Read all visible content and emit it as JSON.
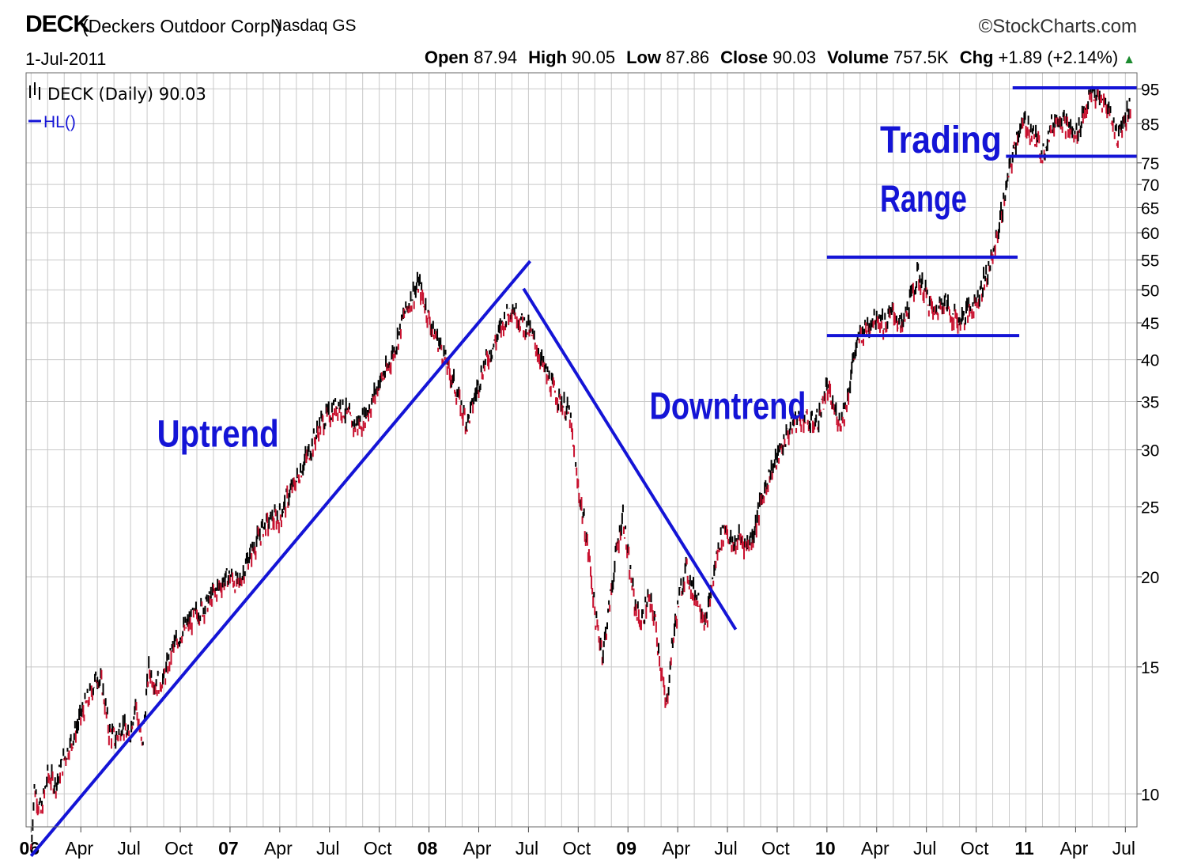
{
  "header": {
    "ticker": "DECK",
    "company": "(Deckers Outdoor Corp.)",
    "exchange": "Nasdaq GS",
    "date": "1-Jul-2011",
    "brand": "©StockCharts.com",
    "quote": {
      "open_label": "Open",
      "open": "87.94",
      "high_label": "High",
      "high": "90.05",
      "low_label": "Low",
      "low": "87.86",
      "close_label": "Close",
      "close": "90.03",
      "volume_label": "Volume",
      "volume": "757.5K",
      "chg_label": "Chg",
      "chg": "+1.89 (+2.14%)",
      "chg_icon": "up-triangle-icon"
    }
  },
  "chart_data": {
    "type": "line",
    "scale": "log",
    "grid": true,
    "legend": {
      "position": "top-left",
      "price_label": "DECK (Daily) 90.03",
      "indicator_label": "HL()"
    },
    "ylim": [
      9,
      100
    ],
    "y_ticks": [
      10,
      15,
      20,
      25,
      30,
      35,
      40,
      45,
      50,
      55,
      60,
      65,
      70,
      75,
      85,
      95
    ],
    "x_ticks": [
      {
        "label": "06",
        "t": 0,
        "bold": true
      },
      {
        "label": "Apr",
        "t": 3
      },
      {
        "label": "Jul",
        "t": 6
      },
      {
        "label": "Oct",
        "t": 9
      },
      {
        "label": "07",
        "t": 12,
        "bold": true
      },
      {
        "label": "Apr",
        "t": 15
      },
      {
        "label": "Jul",
        "t": 18
      },
      {
        "label": "Oct",
        "t": 21
      },
      {
        "label": "08",
        "t": 24,
        "bold": true
      },
      {
        "label": "Apr",
        "t": 27
      },
      {
        "label": "Jul",
        "t": 30
      },
      {
        "label": "Oct",
        "t": 33
      },
      {
        "label": "09",
        "t": 36,
        "bold": true
      },
      {
        "label": "Apr",
        "t": 39
      },
      {
        "label": "Jul",
        "t": 42
      },
      {
        "label": "Oct",
        "t": 45
      },
      {
        "label": "10",
        "t": 48,
        "bold": true
      },
      {
        "label": "Apr",
        "t": 51
      },
      {
        "label": "Jul",
        "t": 54
      },
      {
        "label": "Oct",
        "t": 57
      },
      {
        "label": "11",
        "t": 60,
        "bold": true
      },
      {
        "label": "Apr",
        "t": 63
      },
      {
        "label": "Jul",
        "t": 66
      }
    ],
    "series": [
      {
        "points": [
          [
            0,
            8.4
          ],
          [
            0.2,
            10.2
          ],
          [
            0.6,
            9.4
          ],
          [
            1,
            10.6
          ],
          [
            1.5,
            10.3
          ],
          [
            2,
            11.2
          ],
          [
            2.5,
            11.9
          ],
          [
            3,
            12.8
          ],
          [
            3.5,
            13.6
          ],
          [
            4,
            14.6
          ],
          [
            4.3,
            14.1
          ],
          [
            4.7,
            12.2
          ],
          [
            5.1,
            11.9
          ],
          [
            5.5,
            12.5
          ],
          [
            5.9,
            11.9
          ],
          [
            6.3,
            13.4
          ],
          [
            6.7,
            11.6
          ],
          [
            7.1,
            14.9
          ],
          [
            7.5,
            14.2
          ],
          [
            8,
            14.4
          ],
          [
            8.5,
            15.8
          ],
          [
            9,
            16.6
          ],
          [
            9.5,
            17.2
          ],
          [
            10,
            17.8
          ],
          [
            10.5,
            18.2
          ],
          [
            11,
            18.9
          ],
          [
            11.5,
            19.6
          ],
          [
            12,
            20.1
          ],
          [
            12.5,
            19.4
          ],
          [
            13,
            20.9
          ],
          [
            13.5,
            22.1
          ],
          [
            14,
            23.4
          ],
          [
            14.5,
            23.9
          ],
          [
            15,
            24.2
          ],
          [
            15.5,
            25.8
          ],
          [
            16,
            27.2
          ],
          [
            16.5,
            28.9
          ],
          [
            17,
            30.6
          ],
          [
            17.5,
            32.7
          ],
          [
            18,
            33.6
          ],
          [
            18.5,
            34.7
          ],
          [
            19,
            33.8
          ],
          [
            19.5,
            32.3
          ],
          [
            20,
            32.9
          ],
          [
            20.5,
            34.6
          ],
          [
            21,
            37.2
          ],
          [
            21.5,
            38.8
          ],
          [
            22,
            41.9
          ],
          [
            22.5,
            46.2
          ],
          [
            23,
            49.1
          ],
          [
            23.4,
            50.8
          ],
          [
            23.8,
            47.3
          ],
          [
            24.2,
            44.1
          ],
          [
            24.7,
            41.7
          ],
          [
            25.1,
            39.3
          ],
          [
            25.5,
            37.1
          ],
          [
            25.9,
            34.6
          ],
          [
            26.3,
            32.6
          ],
          [
            26.7,
            35.1
          ],
          [
            27.1,
            37.9
          ],
          [
            27.5,
            40.2
          ],
          [
            28,
            42.3
          ],
          [
            28.5,
            45.2
          ],
          [
            29,
            47.5
          ],
          [
            29.5,
            45.3
          ],
          [
            30,
            44.1
          ],
          [
            30.5,
            41.6
          ],
          [
            31,
            38.6
          ],
          [
            31.5,
            36.3
          ],
          [
            32,
            34.9
          ],
          [
            32.5,
            33.4
          ],
          [
            32.9,
            27.4
          ],
          [
            33.3,
            24.2
          ],
          [
            33.7,
            20.9
          ],
          [
            34.1,
            17.1
          ],
          [
            34.5,
            15.7
          ],
          [
            34.9,
            18.4
          ],
          [
            35.3,
            21.6
          ],
          [
            35.7,
            24.4
          ],
          [
            36,
            21.3
          ],
          [
            36.4,
            18.4
          ],
          [
            36.8,
            17.2
          ],
          [
            37.2,
            18.6
          ],
          [
            37.6,
            17.6
          ],
          [
            38,
            14.9
          ],
          [
            38.3,
            13.1
          ],
          [
            38.7,
            16.3
          ],
          [
            39.1,
            18.7
          ],
          [
            39.5,
            20.6
          ],
          [
            39.9,
            19.1
          ],
          [
            40.3,
            18.6
          ],
          [
            40.7,
            17.1
          ],
          [
            41.1,
            19.6
          ],
          [
            41.5,
            22.3
          ],
          [
            41.9,
            23.5
          ],
          [
            42.3,
            21.9
          ],
          [
            42.7,
            22.7
          ],
          [
            43.1,
            22.1
          ],
          [
            43.5,
            22.6
          ],
          [
            44,
            25.2
          ],
          [
            44.5,
            27.6
          ],
          [
            45,
            29.1
          ],
          [
            45.5,
            31.2
          ],
          [
            46,
            32.8
          ],
          [
            46.5,
            33.4
          ],
          [
            47,
            32.5
          ],
          [
            47.5,
            33.1
          ],
          [
            48,
            36.6
          ],
          [
            48.4,
            34.2
          ],
          [
            48.8,
            32.8
          ],
          [
            49.2,
            34.8
          ],
          [
            49.6,
            40.2
          ],
          [
            50,
            43.1
          ],
          [
            50.5,
            44.7
          ],
          [
            51,
            46.2
          ],
          [
            51.5,
            44.6
          ],
          [
            52,
            46.8
          ],
          [
            52.5,
            44.1
          ],
          [
            53,
            48.2
          ],
          [
            53.5,
            52.3
          ],
          [
            54,
            49.1
          ],
          [
            54.5,
            46.1
          ],
          [
            55,
            48.6
          ],
          [
            55.5,
            46.3
          ],
          [
            56,
            45.2
          ],
          [
            56.5,
            46.6
          ],
          [
            57,
            48.3
          ],
          [
            57.5,
            51.4
          ],
          [
            58,
            55.6
          ],
          [
            58.5,
            63.2
          ],
          [
            59,
            72.8
          ],
          [
            59.5,
            82.6
          ],
          [
            60,
            85.1
          ],
          [
            60.5,
            81.7
          ],
          [
            61,
            77.6
          ],
          [
            61.5,
            83.4
          ],
          [
            62,
            87.6
          ],
          [
            62.5,
            84.1
          ],
          [
            63,
            81.5
          ],
          [
            63.5,
            88.1
          ],
          [
            64,
            93.6
          ],
          [
            64.5,
            91.4
          ],
          [
            65,
            89.3
          ],
          [
            65.5,
            81.3
          ],
          [
            66,
            86.8
          ],
          [
            66.3,
            90.03
          ]
        ]
      }
    ],
    "annotations": [
      {
        "text": "Uptrend",
        "t": 7.6,
        "v": 30.3
      },
      {
        "text": "Downtrend",
        "t": 37.3,
        "v": 33.1
      },
      {
        "text": "Trading",
        "t": 51.2,
        "v": 77.5
      },
      {
        "text": "Range",
        "t": 51.2,
        "v": 64.2
      }
    ],
    "lines": [
      {
        "name": "uptrend-line",
        "from": [
          0,
          8.2
        ],
        "to": [
          30.1,
          54.8
        ]
      },
      {
        "name": "downtrend-line",
        "from": [
          29.7,
          50.2
        ],
        "to": [
          42.5,
          16.9
        ]
      },
      {
        "name": "range-support-1",
        "from": [
          48,
          43.2
        ],
        "to": [
          59.6,
          43.2
        ]
      },
      {
        "name": "range-resistance-1",
        "from": [
          48,
          55.5
        ],
        "to": [
          59.5,
          55.5
        ]
      },
      {
        "name": "range-support-2",
        "from": [
          58.8,
          76.6
        ],
        "to": [
          66.7,
          76.6
        ]
      },
      {
        "name": "range-resistance-2",
        "from": [
          59.2,
          95.3
        ],
        "to": [
          66.7,
          95.3
        ]
      }
    ],
    "colors": {
      "price_up": "#000000",
      "price_down": "#c8102e",
      "annotation": "#1414d6",
      "grid": "#c8c8c8",
      "frame": "#666666"
    }
  }
}
